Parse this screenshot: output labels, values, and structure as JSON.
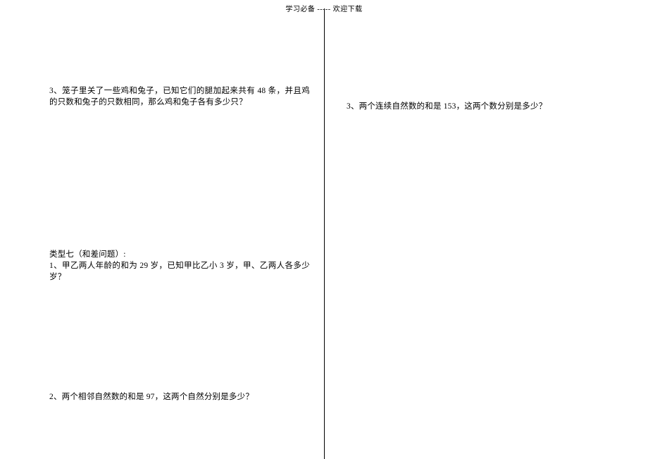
{
  "header": "学习必备 ----- 欢迎下载",
  "left": {
    "q3": "3、笼子里关了一些鸡和兔子，已知它们的腿加起来共有 48 条，并且鸡的只数和兔子的只数相同，那么鸡和兔子各有多少只？",
    "type7_title": "类型七（和差问题）:",
    "type7_q1": "1、甲乙两人年龄的和为 29 岁，已知甲比乙小 3 岁，甲、乙两人各多少岁？",
    "type7_q2": "2、两个相邻自然数的和是 97，这两个自然分别是多少？"
  },
  "right": {
    "q3": "3、两个连续自然数的和是 153，这两个数分别是多少？"
  }
}
